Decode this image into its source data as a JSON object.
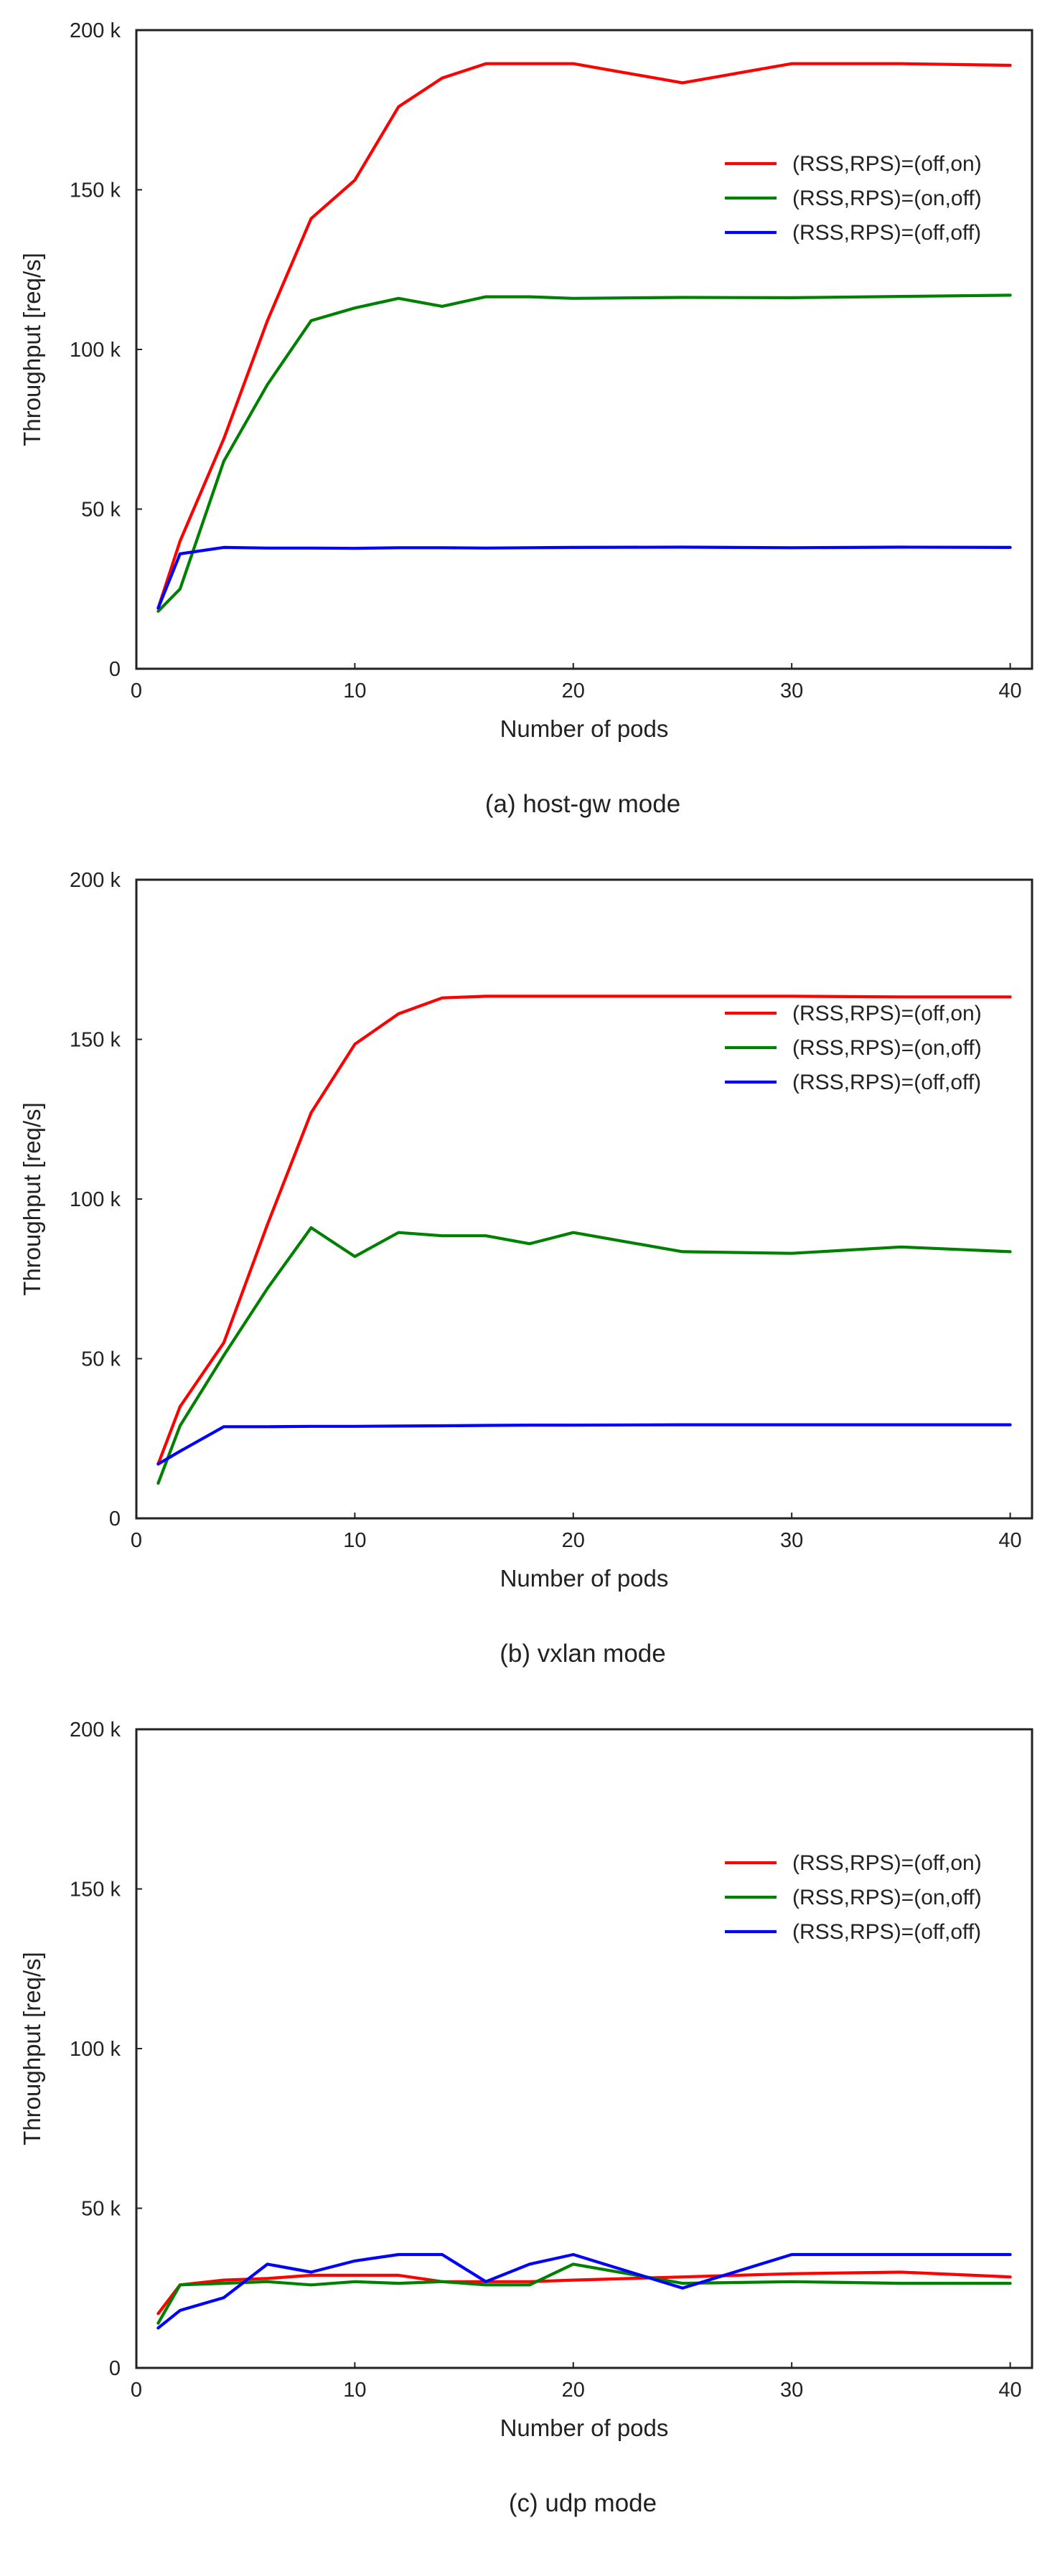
{
  "chart_data": [
    {
      "type": "line",
      "caption": "(a) host-gw mode",
      "xlabel": "Number of pods",
      "ylabel": "Throughput [req/s]",
      "xlim": [
        0,
        41
      ],
      "ylim": [
        0,
        200000
      ],
      "xticks": [
        0,
        10,
        20,
        30,
        40
      ],
      "yticks": [
        0,
        50000,
        100000,
        150000,
        200000
      ],
      "ytick_labels": [
        "0",
        "50 k",
        "100 k",
        "150 k",
        "200 k"
      ],
      "grid": false,
      "legend_position": "upper-right",
      "series": [
        {
          "name": "(RSS,RPS)=(off,on)",
          "color": "#ff0000",
          "x": [
            1,
            2,
            4,
            6,
            8,
            10,
            12,
            14,
            16,
            18,
            20,
            25,
            30,
            35,
            40
          ],
          "y": [
            19000,
            40000,
            72000,
            109000,
            141000,
            153000,
            176000,
            185000,
            189500,
            189500,
            189500,
            183500,
            189500,
            189500,
            189000
          ]
        },
        {
          "name": "(RSS,RPS)=(on,off)",
          "color": "#008000",
          "x": [
            1,
            2,
            4,
            6,
            8,
            10,
            12,
            14,
            16,
            18,
            20,
            25,
            30,
            35,
            40
          ],
          "y": [
            18000,
            25000,
            65000,
            89000,
            109000,
            113000,
            116000,
            113500,
            116500,
            116500,
            116000,
            116300,
            116200,
            116600,
            117000
          ]
        },
        {
          "name": "(RSS,RPS)=(off,off)",
          "color": "#0000ff",
          "x": [
            1,
            2,
            4,
            6,
            8,
            10,
            12,
            14,
            16,
            18,
            20,
            25,
            30,
            35,
            40
          ],
          "y": [
            19000,
            36000,
            38000,
            37800,
            37800,
            37700,
            37900,
            37900,
            37800,
            37900,
            38000,
            38100,
            37900,
            38100,
            38000
          ]
        }
      ]
    },
    {
      "type": "line",
      "caption": "(b) vxlan mode",
      "xlabel": "Number of pods",
      "ylabel": "Throughput [req/s]",
      "xlim": [
        0,
        41
      ],
      "ylim": [
        0,
        200000
      ],
      "xticks": [
        0,
        10,
        20,
        30,
        40
      ],
      "yticks": [
        0,
        50000,
        100000,
        150000,
        200000
      ],
      "ytick_labels": [
        "0",
        "50 k",
        "100 k",
        "150 k",
        "200 k"
      ],
      "grid": false,
      "legend_position": "upper-right",
      "series": [
        {
          "name": "(RSS,RPS)=(off,on)",
          "color": "#ff0000",
          "x": [
            1,
            2,
            4,
            6,
            8,
            10,
            12,
            14,
            16,
            18,
            20,
            25,
            30,
            35,
            40
          ],
          "y": [
            17000,
            35000,
            55000,
            92000,
            127000,
            148500,
            158000,
            163000,
            163500,
            163500,
            163500,
            163500,
            163500,
            163300,
            163300
          ]
        },
        {
          "name": "(RSS,RPS)=(on,off)",
          "color": "#008000",
          "x": [
            1,
            2,
            4,
            6,
            8,
            10,
            12,
            14,
            16,
            18,
            20,
            25,
            30,
            35,
            40
          ],
          "y": [
            11000,
            29000,
            51000,
            72000,
            91000,
            82000,
            89500,
            88500,
            88500,
            86000,
            89500,
            83500,
            83000,
            85000,
            83500
          ]
        },
        {
          "name": "(RSS,RPS)=(off,off)",
          "color": "#0000ff",
          "x": [
            1,
            2,
            4,
            6,
            8,
            10,
            12,
            14,
            16,
            18,
            20,
            25,
            30,
            35,
            40
          ],
          "y": [
            17000,
            21000,
            28700,
            28700,
            28800,
            28800,
            28900,
            29000,
            29100,
            29200,
            29200,
            29300,
            29300,
            29300,
            29300
          ]
        }
      ]
    },
    {
      "type": "line",
      "caption": "(c) udp mode",
      "xlabel": "Number of pods",
      "ylabel": "Throughput [req/s]",
      "xlim": [
        0,
        41
      ],
      "ylim": [
        0,
        200000
      ],
      "xticks": [
        0,
        10,
        20,
        30,
        40
      ],
      "yticks": [
        0,
        50000,
        100000,
        150000,
        200000
      ],
      "ytick_labels": [
        "0",
        "50 k",
        "100 k",
        "150 k",
        "200 k"
      ],
      "grid": false,
      "legend_position": "upper-right",
      "series": [
        {
          "name": "(RSS,RPS)=(off,on)",
          "color": "#ff0000",
          "x": [
            1,
            2,
            4,
            6,
            8,
            10,
            12,
            14,
            16,
            18,
            20,
            25,
            30,
            35,
            40
          ],
          "y": [
            17000,
            26000,
            27500,
            28000,
            29000,
            29000,
            29000,
            27000,
            27000,
            27000,
            27500,
            28500,
            29500,
            30000,
            28500
          ]
        },
        {
          "name": "(RSS,RPS)=(on,off)",
          "color": "#008000",
          "x": [
            1,
            2,
            4,
            6,
            8,
            10,
            12,
            14,
            16,
            18,
            20,
            25,
            30,
            35,
            40
          ],
          "y": [
            14000,
            26000,
            26500,
            27000,
            26000,
            27000,
            26500,
            27000,
            26000,
            26000,
            32500,
            26500,
            27000,
            26500,
            26500
          ]
        },
        {
          "name": "(RSS,RPS)=(off,off)",
          "color": "#0000ff",
          "x": [
            1,
            2,
            4,
            6,
            8,
            10,
            12,
            14,
            16,
            18,
            20,
            25,
            30,
            35,
            40
          ],
          "y": [
            12500,
            18000,
            22000,
            32500,
            30000,
            33500,
            35500,
            35500,
            27000,
            32500,
            35500,
            25000,
            35500,
            35500,
            35500
          ]
        }
      ]
    }
  ]
}
